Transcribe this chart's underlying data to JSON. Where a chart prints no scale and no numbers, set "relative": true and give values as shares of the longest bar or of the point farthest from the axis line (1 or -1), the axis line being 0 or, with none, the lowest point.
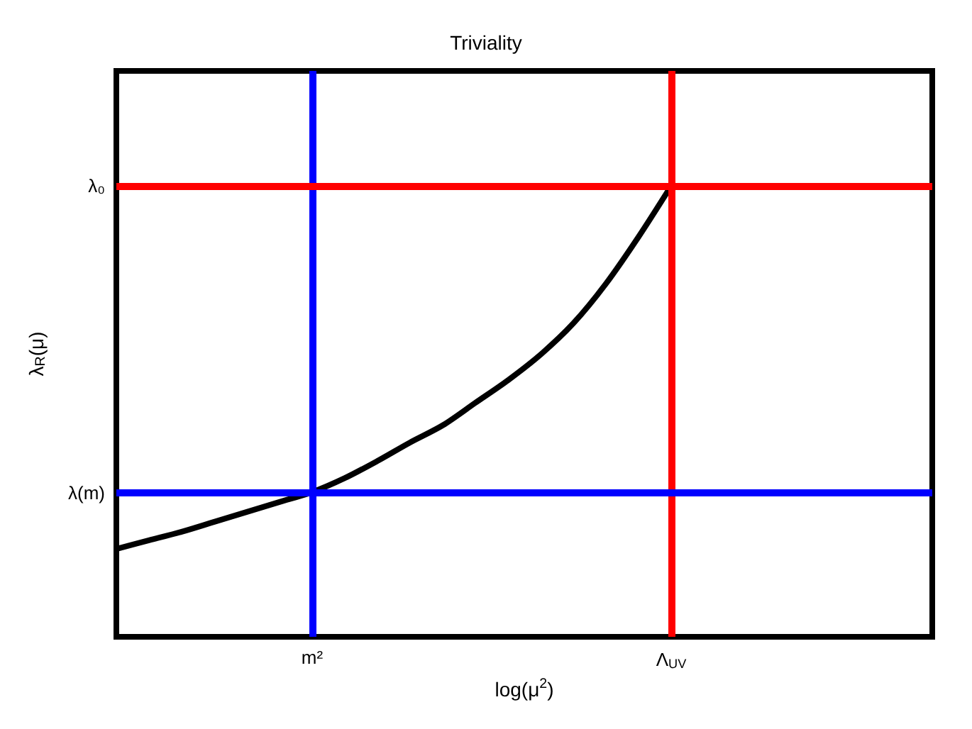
{
  "chart_data": {
    "type": "line",
    "title": "Triviality",
    "xlabel": "log(μ$^{2}$)",
    "ylabel": "λ$_{R}$(μ)",
    "relative": true,
    "categories": [
      null,
      null,
      null,
      null,
      null,
      null,
      "m²",
      null,
      null,
      null,
      null,
      null,
      null,
      null,
      null,
      null,
      null,
      "Λ$_{UV}$",
      null,
      null,
      null,
      null,
      null,
      null,
      null,
      null
    ],
    "series": [
      {
        "color": "#000000",
        "values": [
          0.195,
          0.214,
          0.233,
          0.255,
          0.277,
          0.299,
          0.321,
          0.352,
          0.39,
          0.431,
          0.469,
          0.519,
          0.569,
          0.626,
          0.695,
          0.783,
          0.887,
          1,
          null,
          null,
          null,
          null,
          null,
          null,
          null,
          null
        ]
      }
    ],
    "ref_lines": [
      {
        "axis": "x",
        "value": "m²",
        "color": "#0000ff"
      },
      {
        "axis": "x",
        "value": "Λ$_{UV}$",
        "color": "#ff0000"
      },
      {
        "axis": "y",
        "value": 1,
        "label": "λ₀",
        "color": "#ff0000"
      },
      {
        "axis": "y",
        "value": 0.321,
        "label": "λ(m)",
        "color": "#0000ff"
      }
    ],
    "marker": "none",
    "line_style": "solid"
  }
}
